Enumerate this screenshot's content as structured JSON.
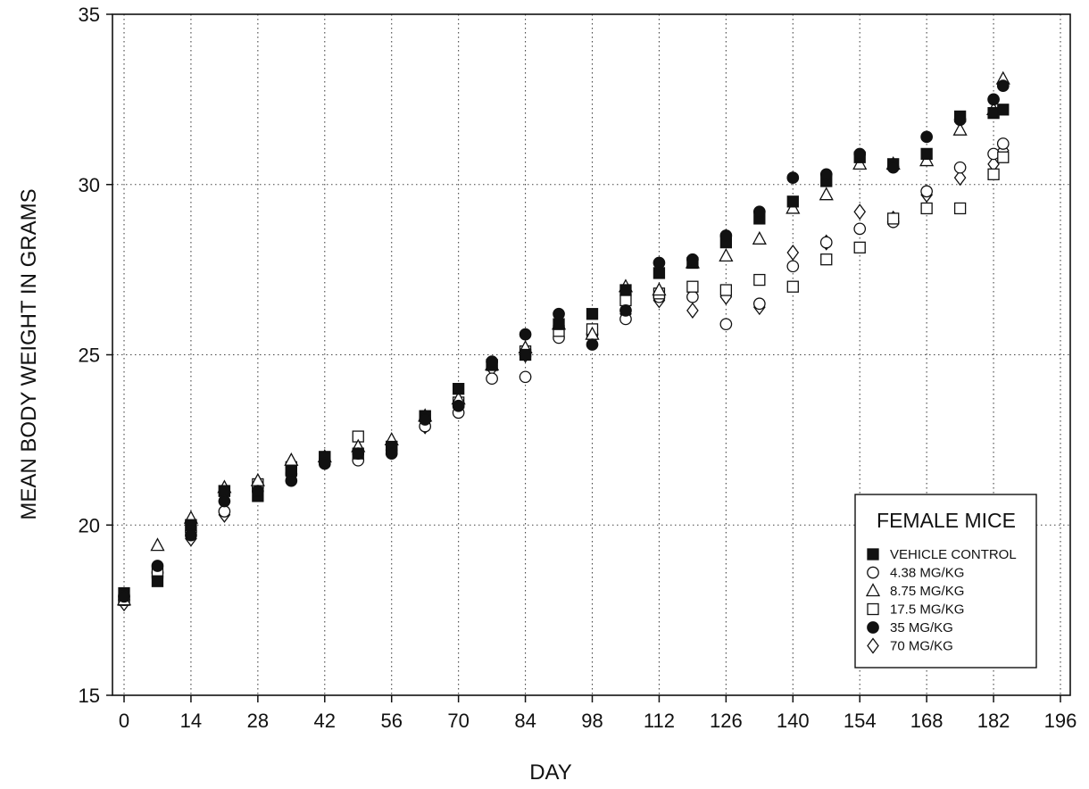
{
  "chart_data": {
    "type": "scatter",
    "title": "",
    "xlabel": "DAY",
    "ylabel": "MEAN BODY WEIGHT IN GRAMS",
    "xlim": [
      -3,
      196
    ],
    "ylim": [
      15,
      35
    ],
    "xticks": [
      0,
      14,
      28,
      42,
      56,
      70,
      84,
      98,
      112,
      126,
      140,
      154,
      168,
      182,
      196
    ],
    "yticks": [
      15,
      20,
      25,
      30,
      35
    ],
    "grid": true,
    "legend": {
      "title": "FEMALE MICE",
      "placement": "bottom-right"
    },
    "series": [
      {
        "name": "VEHICLE CONTROL",
        "marker": "square",
        "filled": true,
        "points": [
          [
            0,
            18.0
          ],
          [
            7,
            18.35
          ],
          [
            14,
            20.0
          ],
          [
            21,
            21.0
          ],
          [
            28,
            20.85
          ],
          [
            35,
            21.6
          ],
          [
            42,
            22.0
          ],
          [
            49,
            22.1
          ],
          [
            56,
            22.3
          ],
          [
            63,
            23.2
          ],
          [
            70,
            24.0
          ],
          [
            77,
            24.7
          ],
          [
            84,
            25.0
          ],
          [
            91,
            25.9
          ],
          [
            98,
            26.2
          ],
          [
            105,
            26.9
          ],
          [
            112,
            27.4
          ],
          [
            119,
            27.7
          ],
          [
            126,
            28.3
          ],
          [
            133,
            29.0
          ],
          [
            140,
            29.5
          ],
          [
            147,
            30.1
          ],
          [
            154,
            30.8
          ],
          [
            161,
            30.6
          ],
          [
            168,
            30.9
          ],
          [
            175,
            32.0
          ],
          [
            182,
            32.1
          ],
          [
            184,
            32.2
          ]
        ]
      },
      {
        "name": "4.38 MG/KG",
        "marker": "circle",
        "filled": false,
        "points": [
          [
            0,
            17.8
          ],
          [
            7,
            18.6
          ],
          [
            14,
            19.8
          ],
          [
            21,
            20.4
          ],
          [
            28,
            21.1
          ],
          [
            35,
            21.5
          ],
          [
            42,
            21.9
          ],
          [
            49,
            21.9
          ],
          [
            56,
            22.2
          ],
          [
            63,
            22.9
          ],
          [
            70,
            23.3
          ],
          [
            77,
            24.3
          ],
          [
            84,
            24.35
          ],
          [
            91,
            25.5
          ],
          [
            98,
            25.6
          ],
          [
            105,
            26.05
          ],
          [
            112,
            26.7
          ],
          [
            119,
            26.7
          ],
          [
            126,
            25.9
          ],
          [
            133,
            26.5
          ],
          [
            140,
            27.6
          ],
          [
            147,
            28.3
          ],
          [
            154,
            28.7
          ],
          [
            161,
            28.9
          ],
          [
            168,
            29.8
          ],
          [
            175,
            30.5
          ],
          [
            182,
            30.9
          ],
          [
            184,
            31.2
          ]
        ]
      },
      {
        "name": "8.75 MG/KG",
        "marker": "triangle",
        "filled": false,
        "points": [
          [
            0,
            17.8
          ],
          [
            7,
            19.4
          ],
          [
            14,
            20.2
          ],
          [
            21,
            21.1
          ],
          [
            28,
            21.3
          ],
          [
            35,
            21.9
          ],
          [
            42,
            22.0
          ],
          [
            49,
            22.3
          ],
          [
            56,
            22.5
          ],
          [
            63,
            23.2
          ],
          [
            70,
            23.7
          ],
          [
            77,
            24.7
          ],
          [
            84,
            25.2
          ],
          [
            91,
            25.9
          ],
          [
            98,
            25.6
          ],
          [
            105,
            27.0
          ],
          [
            112,
            26.9
          ],
          [
            119,
            27.7
          ],
          [
            126,
            27.9
          ],
          [
            133,
            28.4
          ],
          [
            140,
            29.3
          ],
          [
            147,
            29.7
          ],
          [
            154,
            30.6
          ],
          [
            161,
            30.6
          ],
          [
            168,
            30.7
          ],
          [
            175,
            31.6
          ],
          [
            182,
            32.2
          ],
          [
            184,
            33.1
          ]
        ]
      },
      {
        "name": "17.5 MG/KG",
        "marker": "square",
        "filled": false,
        "points": [
          [
            0,
            17.8
          ],
          [
            7,
            18.6
          ],
          [
            14,
            20.0
          ],
          [
            21,
            21.0
          ],
          [
            28,
            21.2
          ],
          [
            35,
            21.7
          ],
          [
            42,
            22.0
          ],
          [
            49,
            22.6
          ],
          [
            56,
            22.3
          ],
          [
            63,
            23.2
          ],
          [
            70,
            23.6
          ],
          [
            77,
            24.7
          ],
          [
            84,
            25.1
          ],
          [
            91,
            25.7
          ],
          [
            98,
            25.75
          ],
          [
            105,
            26.6
          ],
          [
            112,
            26.8
          ],
          [
            119,
            27.0
          ],
          [
            126,
            26.9
          ],
          [
            133,
            27.2
          ],
          [
            140,
            27.0
          ],
          [
            147,
            27.8
          ],
          [
            154,
            28.15
          ],
          [
            161,
            29.0
          ],
          [
            168,
            29.3
          ],
          [
            175,
            29.3
          ],
          [
            182,
            30.3
          ],
          [
            184,
            30.8
          ]
        ]
      },
      {
        "name": "35 MG/KG",
        "marker": "circle",
        "filled": true,
        "points": [
          [
            0,
            17.9
          ],
          [
            7,
            18.8
          ],
          [
            14,
            19.7
          ],
          [
            21,
            20.7
          ],
          [
            28,
            21.0
          ],
          [
            35,
            21.3
          ],
          [
            42,
            21.8
          ],
          [
            49,
            22.1
          ],
          [
            56,
            22.1
          ],
          [
            63,
            23.1
          ],
          [
            70,
            23.5
          ],
          [
            77,
            24.8
          ],
          [
            84,
            25.6
          ],
          [
            91,
            26.2
          ],
          [
            98,
            25.3
          ],
          [
            105,
            26.3
          ],
          [
            112,
            27.7
          ],
          [
            119,
            27.8
          ],
          [
            126,
            28.5
          ],
          [
            133,
            29.2
          ],
          [
            140,
            30.2
          ],
          [
            147,
            30.3
          ],
          [
            154,
            30.9
          ],
          [
            161,
            30.5
          ],
          [
            168,
            31.4
          ],
          [
            175,
            31.9
          ],
          [
            182,
            32.5
          ],
          [
            184,
            32.9
          ]
        ]
      },
      {
        "name": "70 MG/KG",
        "marker": "diamond",
        "filled": false,
        "points": [
          [
            0,
            17.7
          ],
          [
            7,
            18.5
          ],
          [
            14,
            19.6
          ],
          [
            21,
            20.3
          ],
          [
            28,
            21.2
          ],
          [
            35,
            21.5
          ],
          [
            42,
            21.9
          ],
          [
            49,
            22.2
          ],
          [
            56,
            22.3
          ],
          [
            63,
            22.9
          ],
          [
            70,
            23.6
          ],
          [
            77,
            24.6
          ],
          [
            84,
            25.0
          ],
          [
            91,
            25.8
          ],
          [
            98,
            25.5
          ],
          [
            105,
            26.2
          ],
          [
            112,
            26.6
          ],
          [
            119,
            26.3
          ],
          [
            126,
            26.7
          ],
          [
            133,
            26.4
          ],
          [
            140,
            28.0
          ],
          [
            147,
            28.3
          ],
          [
            154,
            29.2
          ],
          [
            161,
            29.0
          ],
          [
            168,
            29.7
          ],
          [
            175,
            30.2
          ],
          [
            182,
            30.6
          ],
          [
            184,
            31.0
          ]
        ]
      }
    ]
  }
}
